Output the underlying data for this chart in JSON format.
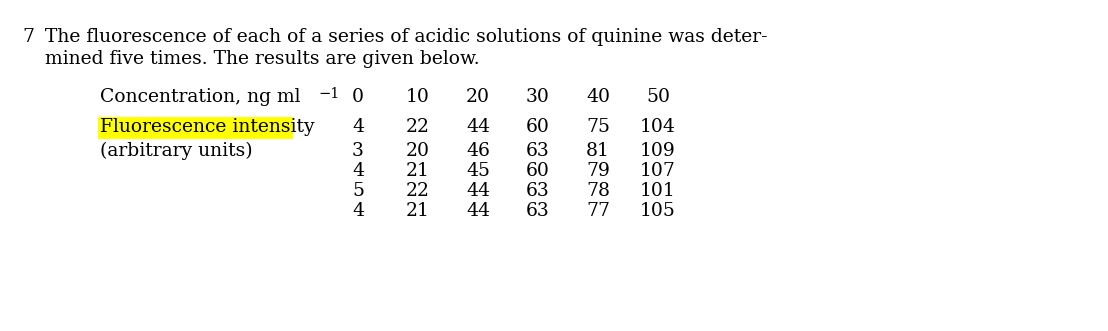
{
  "question_number": "7",
  "intro_text_line1": "The fluorescence of each of a series of acidic solutions of quinine was deter-",
  "intro_text_line2": "mined five times. The results are given below.",
  "background_color": "#ffffff",
  "text_color": "#000000",
  "row_label_col1_line1": "Concentration, ng ml",
  "row_label_col1_line1_superscript": "−1",
  "row_label_col2_line1": "Fluorescence intensity",
  "row_label_col2_line2": "(arbitrary units)",
  "highlight_color": "#ffff00",
  "concentration_values": [
    "0",
    "10",
    "20",
    "30",
    "40",
    "50"
  ],
  "data_rows": [
    [
      "4",
      "22",
      "44",
      "60",
      "75",
      "104"
    ],
    [
      "3",
      "20",
      "46",
      "63",
      "81",
      "109"
    ],
    [
      "4",
      "21",
      "45",
      "60",
      "79",
      "107"
    ],
    [
      "5",
      "22",
      "44",
      "63",
      "78",
      "101"
    ],
    [
      "4",
      "21",
      "44",
      "63",
      "77",
      "105"
    ]
  ],
  "font_size_intro": 13.5,
  "font_size_table": 13.5,
  "font_size_qnum": 13.5
}
